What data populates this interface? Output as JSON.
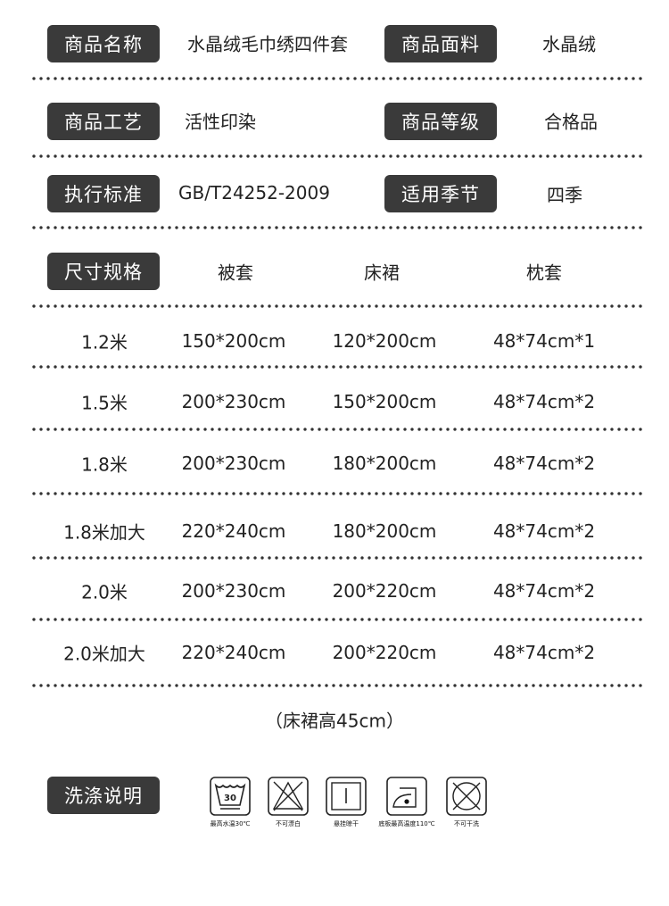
{
  "attributes": [
    {
      "label": "商品名称",
      "value": "水晶绒毛巾绣四件套"
    },
    {
      "label": "商品面料",
      "value": "水晶绒"
    },
    {
      "label": "商品工艺",
      "value": "活性印染"
    },
    {
      "label": "商品等级",
      "value": "合格品"
    },
    {
      "label": "执行标准",
      "value": "GB/T24252-2009"
    },
    {
      "label": "适用季节",
      "value": "四季"
    }
  ],
  "size_table": {
    "label": "尺寸规格",
    "headers": [
      "被套",
      "床裙",
      "枕套"
    ],
    "rows": [
      [
        "1.2米",
        "150*200cm",
        "120*200cm",
        "48*74cm*1"
      ],
      [
        "1.5米",
        "200*230cm",
        "150*200cm",
        "48*74cm*2"
      ],
      [
        "1.8米",
        "200*230cm",
        "180*200cm",
        "48*74cm*2"
      ],
      [
        "1.8米加大",
        "220*240cm",
        "180*200cm",
        "48*74cm*2"
      ],
      [
        "2.0米",
        "200*230cm",
        "200*220cm",
        "48*74cm*2"
      ],
      [
        "2.0米加大",
        "220*240cm",
        "200*220cm",
        "48*74cm*2"
      ]
    ],
    "note": "（床裙高45cm）"
  },
  "care": {
    "label": "洗涤说明",
    "items": [
      {
        "icon": "wash-30-icon",
        "text": "最高水温30℃",
        "number": "30"
      },
      {
        "icon": "no-bleach-icon",
        "text": "不可漂白"
      },
      {
        "icon": "hang-dry-icon",
        "text": "悬挂晾干"
      },
      {
        "icon": "iron-medium-icon",
        "text": "底板最高温度110℃"
      },
      {
        "icon": "no-dry-clean-icon",
        "text": "不可干洗"
      }
    ]
  }
}
